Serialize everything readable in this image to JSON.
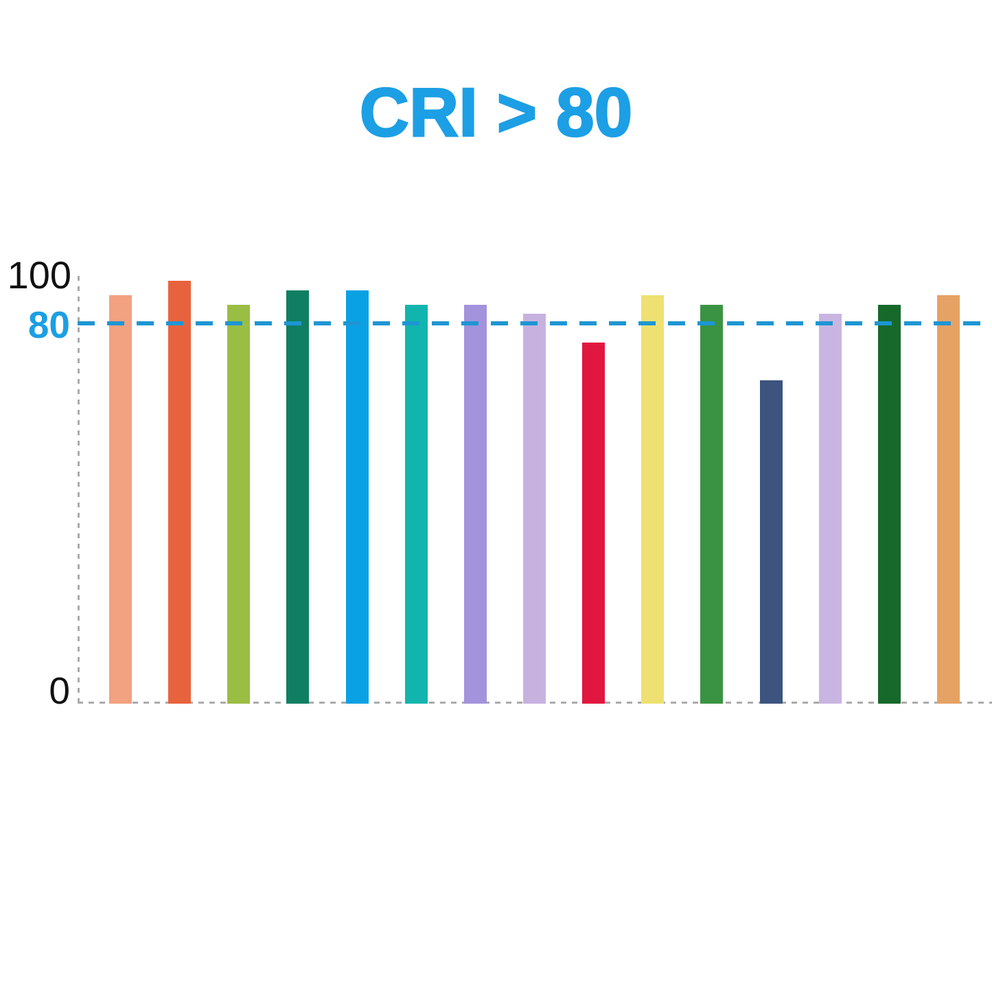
{
  "chart_data": {
    "type": "bar",
    "title": "CRI > 80",
    "title_color": "#1C9FE4",
    "ylim": [
      0,
      100
    ],
    "axis_top_value": 90,
    "grid": false,
    "legend": "none",
    "axis_color": "#ABABAB",
    "yticks": [
      {
        "label": "100"
      },
      {
        "label": "80"
      },
      {
        "label": "0"
      }
    ],
    "threshold": {
      "value": 80,
      "label": "80",
      "line_color": "#1D96D3",
      "style": "dashed"
    },
    "bars": [
      {
        "value": 86,
        "color": "#F2A181"
      },
      {
        "value": 89,
        "color": "#E7633D"
      },
      {
        "value": 84,
        "color": "#9ABD44"
      },
      {
        "value": 87,
        "color": "#107E62"
      },
      {
        "value": 87,
        "color": "#09A1E4"
      },
      {
        "value": 84,
        "color": "#12B5AD"
      },
      {
        "value": 84,
        "color": "#A293DC"
      },
      {
        "value": 82,
        "color": "#C7B2DF"
      },
      {
        "value": 76,
        "color": "#E1173F"
      },
      {
        "value": 86,
        "color": "#EEE171"
      },
      {
        "value": 84,
        "color": "#3A9343"
      },
      {
        "value": 68,
        "color": "#3C547E"
      },
      {
        "value": 82,
        "color": "#C9B5E1"
      },
      {
        "value": 84,
        "color": "#17692B"
      },
      {
        "value": 86,
        "color": "#E6A264"
      }
    ]
  }
}
